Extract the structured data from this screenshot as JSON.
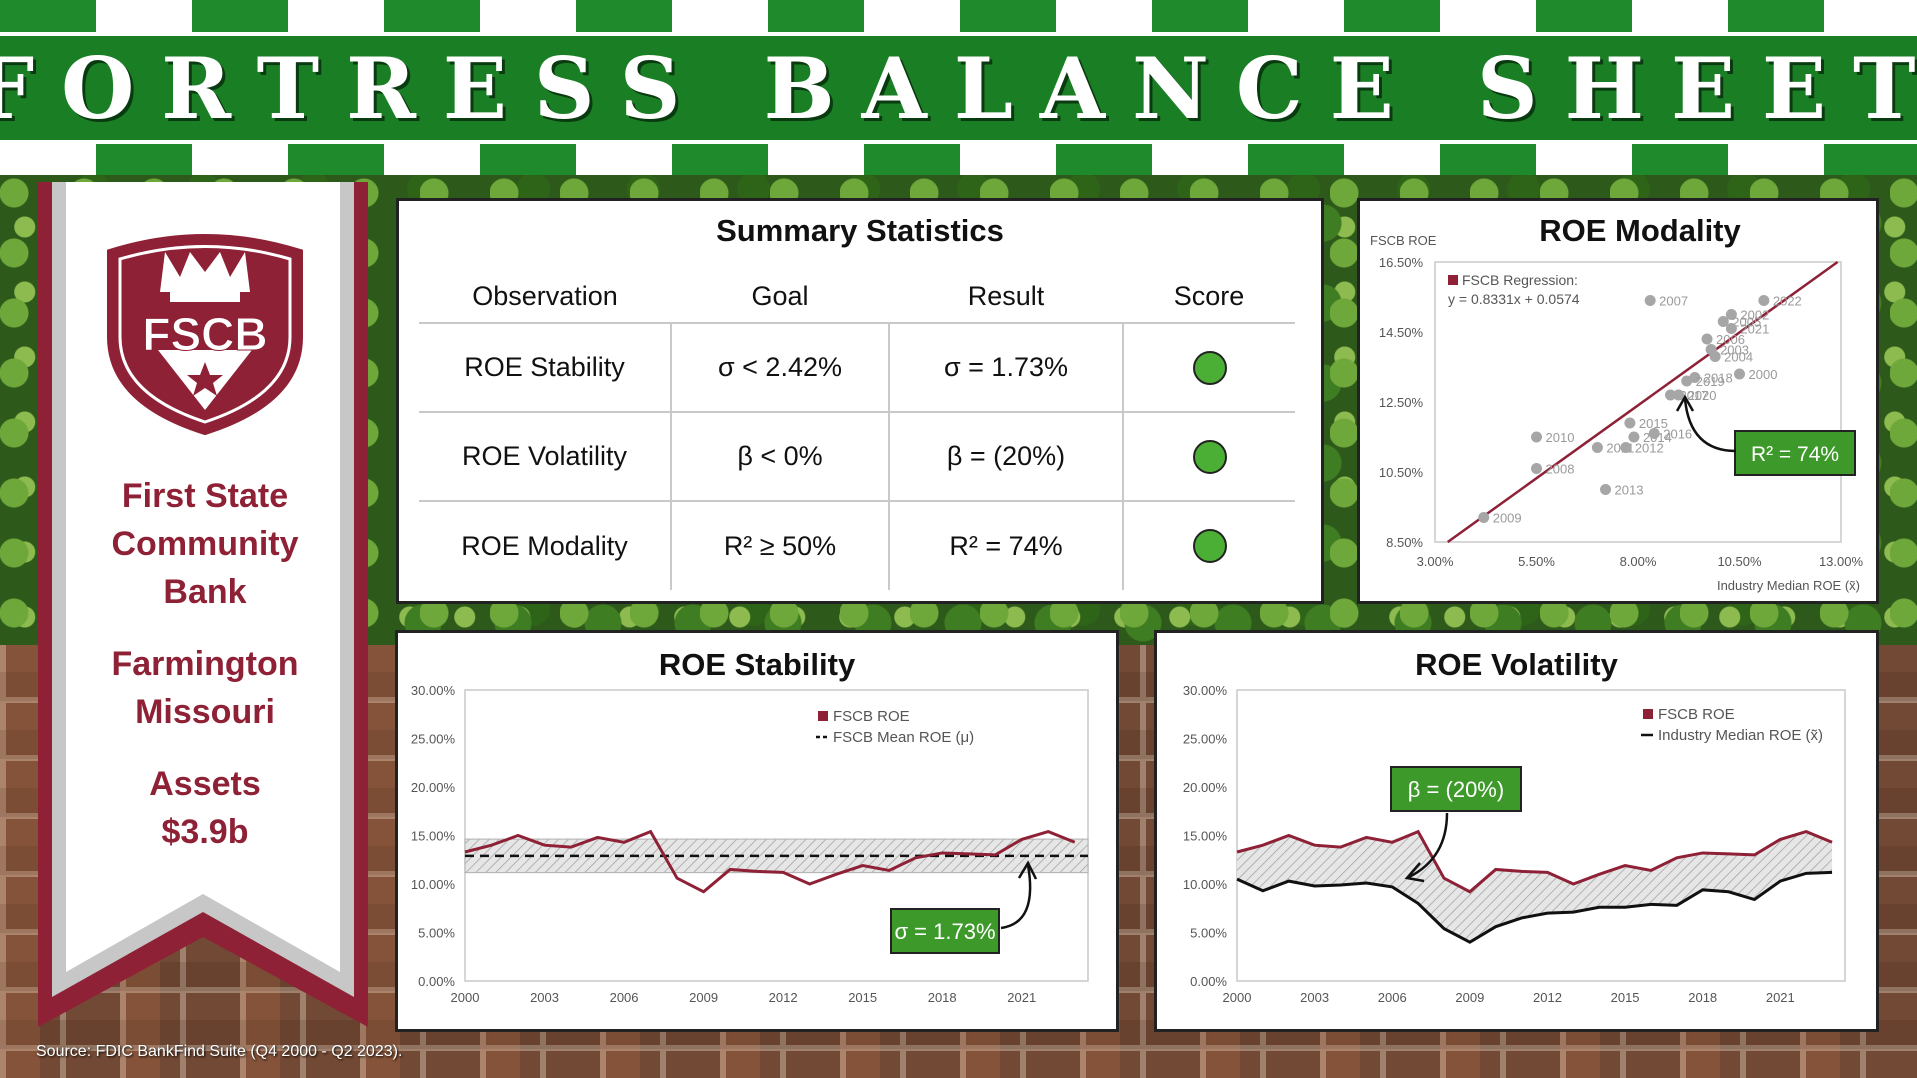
{
  "header": {
    "title": "FORTRESS BALANCE SHEET"
  },
  "bank": {
    "logo_text": "FSCB",
    "name_lines": [
      "First State",
      "Community",
      "Bank"
    ],
    "location_lines": [
      "Farmington",
      "Missouri"
    ],
    "assets_lines": [
      "Assets",
      "$3.9b"
    ]
  },
  "source": "Source: FDIC BankFind Suite (Q4 2000 - Q2 2023).",
  "colors": {
    "fscb": "#8e2136",
    "green": "#1a7f24",
    "score": "#4caf35",
    "scatter": "#a6a6a6"
  },
  "summary": {
    "title": "Summary Statistics",
    "headers": [
      "Observation",
      "Goal",
      "Result",
      "Score"
    ],
    "rows": [
      {
        "observation": "ROE Stability",
        "goal": "σ < 2.42%",
        "result": "σ = 1.73%",
        "score": "pass"
      },
      {
        "observation": "ROE Volatility",
        "goal": "β < 0%",
        "result": "β = (20%)",
        "score": "pass"
      },
      {
        "observation": "ROE Modality",
        "goal": "R² ≥ 50%",
        "result": "R² = 74%",
        "score": "pass"
      }
    ]
  },
  "chart_data": [
    {
      "id": "stability",
      "type": "line",
      "title": "ROE Stability",
      "x_ticks": [
        "2000",
        "2003",
        "2006",
        "2009",
        "2012",
        "2015",
        "2018",
        "2021"
      ],
      "y_ticks": [
        "0.00%",
        "5.00%",
        "10.00%",
        "15.00%",
        "20.00%",
        "25.00%",
        "30.00%"
      ],
      "ylim": [
        0,
        30
      ],
      "xlim": [
        2000,
        2023.5
      ],
      "series": [
        {
          "name": "FSCB ROE",
          "x": [
            2000,
            2001,
            2002,
            2003,
            2004,
            2005,
            2006,
            2007,
            2008,
            2009,
            2010,
            2011,
            2012,
            2013,
            2014,
            2015,
            2016,
            2017,
            2018,
            2019,
            2020,
            2021,
            2022,
            2023
          ],
          "values": [
            13.3,
            14.0,
            15.0,
            14.0,
            13.8,
            14.8,
            14.3,
            15.4,
            10.6,
            9.2,
            11.5,
            11.3,
            11.2,
            10.0,
            11.0,
            11.9,
            11.4,
            12.7,
            13.2,
            13.1,
            13.0,
            14.6,
            15.4,
            14.3
          ]
        },
        {
          "name": "FSCB Mean ROE (μ)",
          "constant": 12.9
        }
      ],
      "band": {
        "lower": 11.17,
        "upper": 14.63
      },
      "annotation": {
        "text": "σ = 1.73%"
      },
      "legend": "top-right"
    },
    {
      "id": "volatility",
      "type": "line",
      "title": "ROE Volatility",
      "x_ticks": [
        "2000",
        "2003",
        "2006",
        "2009",
        "2012",
        "2015",
        "2018",
        "2021"
      ],
      "y_ticks": [
        "0.00%",
        "5.00%",
        "10.00%",
        "15.00%",
        "20.00%",
        "25.00%",
        "30.00%"
      ],
      "ylim": [
        0,
        30
      ],
      "xlim": [
        2000,
        2023.5
      ],
      "series": [
        {
          "name": "FSCB ROE",
          "x": [
            2000,
            2001,
            2002,
            2003,
            2004,
            2005,
            2006,
            2007,
            2008,
            2009,
            2010,
            2011,
            2012,
            2013,
            2014,
            2015,
            2016,
            2017,
            2018,
            2019,
            2020,
            2021,
            2022,
            2023
          ],
          "values": [
            13.3,
            14.0,
            15.0,
            14.0,
            13.8,
            14.8,
            14.3,
            15.4,
            10.6,
            9.2,
            11.5,
            11.3,
            11.2,
            10.0,
            11.0,
            11.9,
            11.4,
            12.7,
            13.2,
            13.1,
            13.0,
            14.6,
            15.4,
            14.3
          ]
        },
        {
          "name": "Industry Median ROE (x̃)",
          "x": [
            2000,
            2001,
            2002,
            2003,
            2004,
            2005,
            2006,
            2007,
            2008,
            2009,
            2010,
            2011,
            2012,
            2013,
            2014,
            2015,
            2016,
            2017,
            2018,
            2019,
            2020,
            2021,
            2022,
            2023
          ],
          "values": [
            10.5,
            9.3,
            10.3,
            9.8,
            9.9,
            10.1,
            9.7,
            8.0,
            5.4,
            4.0,
            5.6,
            6.5,
            7.0,
            7.1,
            7.6,
            7.6,
            7.9,
            7.8,
            9.4,
            9.2,
            8.4,
            10.3,
            11.1,
            11.2
          ]
        }
      ],
      "annotation": {
        "text": "β = (20%)"
      },
      "legend": "top-right"
    },
    {
      "id": "modality",
      "type": "scatter",
      "title": "ROE Modality",
      "y_axis_label": "FSCB ROE",
      "x_axis_label": "Industry Median ROE (x̃)",
      "x_ticks": [
        "3.00%",
        "5.50%",
        "8.00%",
        "10.50%",
        "13.00%"
      ],
      "y_ticks": [
        "8.50%",
        "10.50%",
        "12.50%",
        "14.50%",
        "16.50%"
      ],
      "xlim": [
        3,
        13
      ],
      "ylim": [
        8.5,
        16.5
      ],
      "legend_text": "FSCB Regression:",
      "equation": "y = 0.8331x + 0.0574",
      "regression": {
        "slope": 0.8331,
        "intercept": 5.74
      },
      "points": [
        {
          "label": "2000",
          "x": 10.5,
          "y": 13.3
        },
        {
          "label": "2002",
          "x": 10.3,
          "y": 15.0
        },
        {
          "label": "2003",
          "x": 9.8,
          "y": 14.0
        },
        {
          "label": "2004",
          "x": 9.9,
          "y": 13.8
        },
        {
          "label": "2005",
          "x": 10.1,
          "y": 14.8
        },
        {
          "label": "2006",
          "x": 9.7,
          "y": 14.3
        },
        {
          "label": "2007",
          "x": 8.3,
          "y": 15.4
        },
        {
          "label": "2008",
          "x": 5.5,
          "y": 10.6
        },
        {
          "label": "2009",
          "x": 4.2,
          "y": 9.2
        },
        {
          "label": "2010",
          "x": 5.5,
          "y": 11.5
        },
        {
          "label": "2011",
          "x": 7.0,
          "y": 11.2
        },
        {
          "label": "2012",
          "x": 7.7,
          "y": 11.2
        },
        {
          "label": "2013",
          "x": 7.2,
          "y": 10.0
        },
        {
          "label": "2014",
          "x": 7.9,
          "y": 11.5
        },
        {
          "label": "2015",
          "x": 7.8,
          "y": 11.9
        },
        {
          "label": "2016",
          "x": 8.4,
          "y": 11.6
        },
        {
          "label": "2017",
          "x": 8.8,
          "y": 12.7
        },
        {
          "label": "2018",
          "x": 9.4,
          "y": 13.2
        },
        {
          "label": "2019",
          "x": 9.2,
          "y": 13.1
        },
        {
          "label": "2020",
          "x": 9.0,
          "y": 12.7
        },
        {
          "label": "2021",
          "x": 10.3,
          "y": 14.6
        },
        {
          "label": "2022",
          "x": 11.1,
          "y": 15.4
        }
      ],
      "annotation": {
        "text": "R² = 74%"
      },
      "legend": "top-left"
    }
  ]
}
